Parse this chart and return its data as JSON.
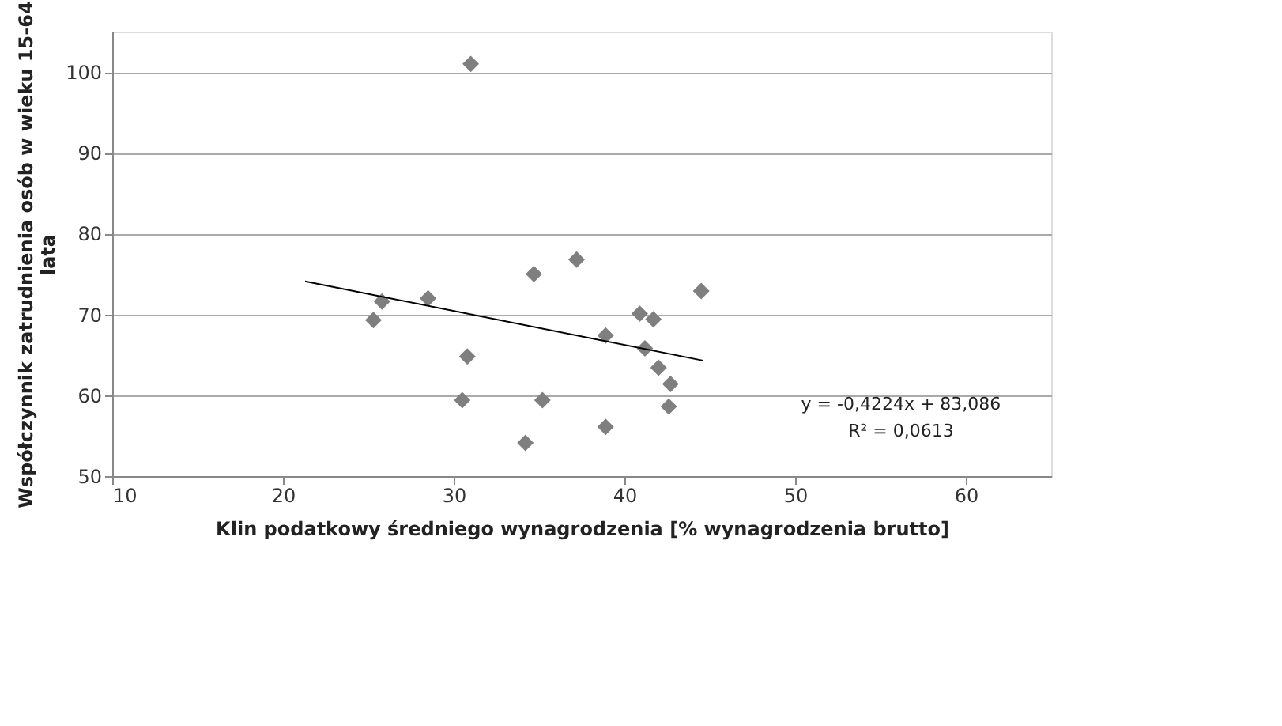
{
  "chart_data": {
    "type": "scatter",
    "xlabel": "Klin podatkowy średniego wynagrodzenia [% wynagrodzenia brutto]",
    "ylabel": "Współczynnik zatrudnienia osób w wieku 15-64 lata",
    "xlim": [
      10,
      65
    ],
    "xticks": [
      10,
      20,
      30,
      40,
      50,
      60
    ],
    "ylim": [
      50,
      105
    ],
    "yticks": [
      50,
      60,
      70,
      80,
      90,
      100
    ],
    "grid": "y",
    "series": [
      {
        "type": "scatter",
        "marker": "diamond",
        "color": "#7f7f7f",
        "x": [
          31,
          25.3,
          25.8,
          28.5,
          30.5,
          30.8,
          34.2,
          34.7,
          35.2,
          37.2,
          38.9,
          38.9,
          40.9,
          41.2,
          41.7,
          42,
          42.7,
          42.6,
          44.5
        ],
        "values": [
          101,
          69.3,
          71.6,
          72,
          59.4,
          64.8,
          54.1,
          75,
          59.4,
          76.8,
          67.4,
          56.1,
          70.1,
          65.8,
          69.4,
          63.4,
          61.4,
          58.6,
          72.9
        ]
      },
      {
        "type": "line",
        "color": "#000000",
        "x": [
          21.3,
          44.6
        ],
        "values": [
          74.1,
          64.3
        ],
        "marker": "none"
      }
    ],
    "annotations": [
      "y = -0,4224x + 83,086",
      "R² = 0,0613"
    ]
  }
}
